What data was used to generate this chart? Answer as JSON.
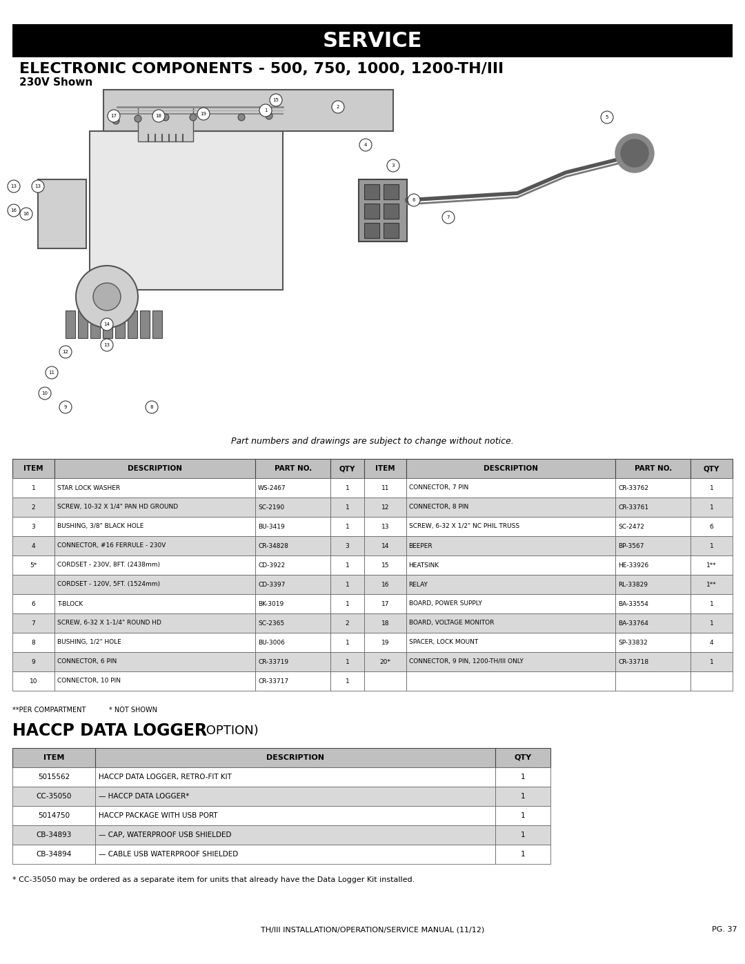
{
  "page_bg": "#ffffff",
  "header_bg": "#000000",
  "header_text": "SERVICE",
  "header_text_color": "#ffffff",
  "title1": "ELECTRONIC COMPONENTS - 500, 750, 1000, 1200-TH/III",
  "subtitle1": "230V Shown",
  "notice_text": "Part numbers and drawings are subject to change without notice.",
  "table1_header": [
    "ITEM",
    "DESCRIPTION",
    "PART NO.",
    "QTY",
    "ITEM",
    "DESCRIPTION",
    "PART NO.",
    "QTY"
  ],
  "table1_header_bg": "#c0c0c0",
  "table1_rows": [
    [
      "1",
      "STAR LOCK WASHER",
      "WS-2467",
      "1",
      "11",
      "CONNECTOR, 7 PIN",
      "CR-33762",
      "1"
    ],
    [
      "2",
      "SCREW, 10-32 X 1/4\" PAN HD GROUND",
      "SC-2190",
      "1",
      "12",
      "CONNECTOR, 8 PIN",
      "CR-33761",
      "1"
    ],
    [
      "3",
      "BUSHING, 3/8\" BLACK HOLE",
      "BU-3419",
      "1",
      "13",
      "SCREW, 6-32 X 1/2\" NC PHIL TRUSS",
      "SC-2472",
      "6"
    ],
    [
      "4",
      "CONNECTOR, #16 FERRULE - 230V",
      "CR-34828",
      "3",
      "14",
      "BEEPER",
      "BP-3567",
      "1"
    ],
    [
      "5*",
      "CORDSET - 230V, 8FT. (2438mm)",
      "CD-3922",
      "1",
      "15",
      "HEATSINK",
      "HE-33926",
      "1**"
    ],
    [
      "",
      "CORDSET - 120V, 5FT. (1524mm)",
      "CD-3397",
      "1",
      "16",
      "RELAY",
      "RL-33829",
      "1**"
    ],
    [
      "6",
      "T-BLOCK",
      "BK-3019",
      "1",
      "17",
      "BOARD, POWER SUPPLY",
      "BA-33554",
      "1"
    ],
    [
      "7",
      "SCREW, 6-32 X 1-1/4\" ROUND HD",
      "SC-2365",
      "2",
      "18",
      "BOARD, VOLTAGE MONITOR",
      "BA-33764",
      "1"
    ],
    [
      "8",
      "BUSHING, 1/2\" HOLE",
      "BU-3006",
      "1",
      "19",
      "SPACER, LOCK MOUNT",
      "SP-33832",
      "4"
    ],
    [
      "9",
      "CONNECTOR, 6 PIN",
      "CR-33719",
      "1",
      "20*",
      "CONNECTOR, 9 PIN, 1200-TH/III ONLY",
      "CR-33718",
      "1"
    ],
    [
      "10",
      "CONNECTOR, 10 PIN",
      "CR-33717",
      "1",
      "",
      "",
      "",
      ""
    ]
  ],
  "table1_row_colors": [
    "#ffffff",
    "#d9d9d9",
    "#ffffff",
    "#d9d9d9",
    "#ffffff",
    "#d9d9d9",
    "#ffffff",
    "#d9d9d9",
    "#ffffff",
    "#d9d9d9",
    "#ffffff"
  ],
  "footnote1": "**PER COMPARTMENT    * NOT SHOWN",
  "title2_main": "HACCP DATA LOGGER",
  "title2_sub": " (OPTION)",
  "table2_header": [
    "ITEM",
    "DESCRIPTION",
    "QTY"
  ],
  "table2_rows": [
    [
      "5015562",
      "HACCP DATA LOGGER, RETRO-FIT KIT",
      "1"
    ],
    [
      "CC-35050",
      "— HACCP DATA LOGGER*",
      "1"
    ],
    [
      "5014750",
      "HACCP PACKAGE WITH USB PORT",
      "1"
    ],
    [
      "CB-34893",
      "— CAP, WATERPROOF USB SHIELDED",
      "1"
    ],
    [
      "CB-34894",
      "— CABLE USB WATERPROOF SHIELDED",
      "1"
    ]
  ],
  "table2_row_colors": [
    "#ffffff",
    "#d9d9d9",
    "#ffffff",
    "#d9d9d9",
    "#ffffff"
  ],
  "footnote2": "* CC-35050 may be ordered as a separate item for units that already have the Data Logger Kit installed.",
  "footer_left": "TH/III INSTALLATION/OPERATION/SERVICE MANUAL (11/12)",
  "footer_right": "PG. 37"
}
